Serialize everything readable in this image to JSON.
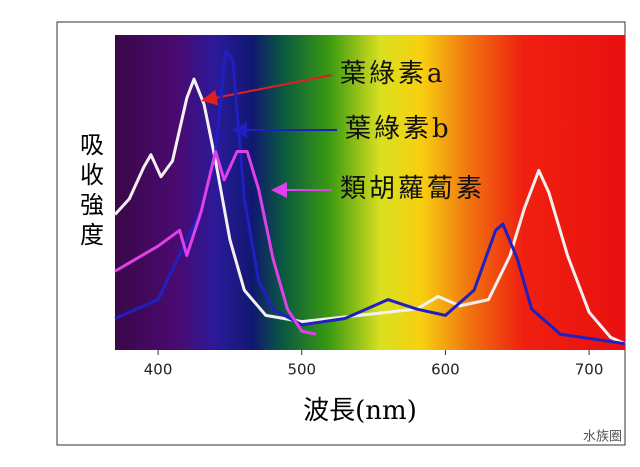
{
  "chart_data": {
    "type": "line",
    "x_label": "波長(nm)",
    "y_label": "吸收強度",
    "xlim": [
      370,
      725
    ],
    "xticks": [
      400,
      500,
      600,
      700
    ],
    "ylim": [
      0,
      100
    ],
    "series": [
      {
        "name": "葉綠素a",
        "color": "#f4f0f0",
        "x": [
          370,
          380,
          390,
          395,
          402,
          410,
          420,
          425,
          432,
          440,
          450,
          460,
          475,
          500,
          520,
          540,
          560,
          580,
          595,
          610,
          630,
          645,
          655,
          665,
          672,
          685,
          700,
          715,
          725
        ],
        "values": [
          43,
          48,
          58,
          62,
          55,
          60,
          80,
          86,
          78,
          60,
          35,
          19,
          11,
          9,
          10,
          11,
          12,
          13,
          17,
          14,
          16,
          30,
          45,
          57,
          50,
          30,
          12,
          4,
          2
        ]
      },
      {
        "name": "葉綠素b",
        "color": "#2020c0",
        "x": [
          370,
          400,
          420,
          430,
          440,
          447,
          452,
          460,
          470,
          480,
          500,
          530,
          560,
          580,
          600,
          620,
          635,
          640,
          650,
          660,
          680,
          725
        ],
        "values": [
          10,
          16,
          35,
          44,
          63,
          95,
          92,
          48,
          22,
          13,
          8,
          10,
          16,
          13,
          11,
          19,
          38,
          40,
          29,
          13,
          5,
          2
        ]
      },
      {
        "name": "類胡蘿蔔素",
        "color": "#e040e8",
        "x": [
          370,
          400,
          415,
          420,
          430,
          440,
          446,
          455,
          462,
          470,
          480,
          490,
          500,
          510
        ],
        "values": [
          25,
          33,
          38,
          30,
          44,
          63,
          54,
          63,
          63,
          51,
          29,
          13,
          6,
          5
        ]
      }
    ],
    "watermark": "水族圈"
  }
}
